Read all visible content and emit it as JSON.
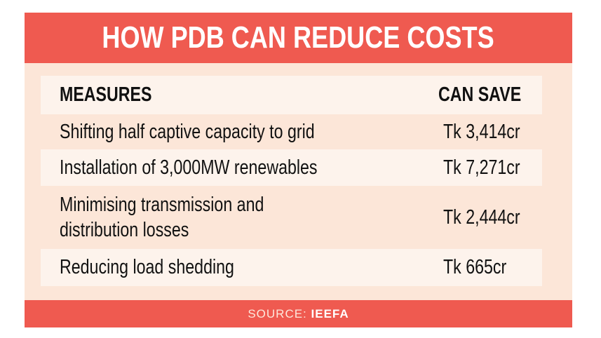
{
  "title": "HOW PDB CAN REDUCE COSTS",
  "colors": {
    "accent": "#ef5a50",
    "background": "#fce6d8",
    "row_alt": "#fdf3ec"
  },
  "chart_data": {
    "type": "table",
    "columns": [
      "MEASURES",
      "CAN SAVE"
    ],
    "rows": [
      [
        "Shifting half captive capacity to grid",
        "Tk 3,414cr"
      ],
      [
        "Installation of 3,000MW renewables",
        "Tk 7,271cr"
      ],
      [
        "Minimising transmission and distribution losses",
        "Tk 2,444cr"
      ],
      [
        "Reducing load shedding",
        "Tk 665cr"
      ]
    ]
  },
  "row3_lines": [
    "Minimising transmission and",
    "distribution losses"
  ],
  "source": {
    "label": "SOURCE:",
    "value": "IEEFA"
  }
}
